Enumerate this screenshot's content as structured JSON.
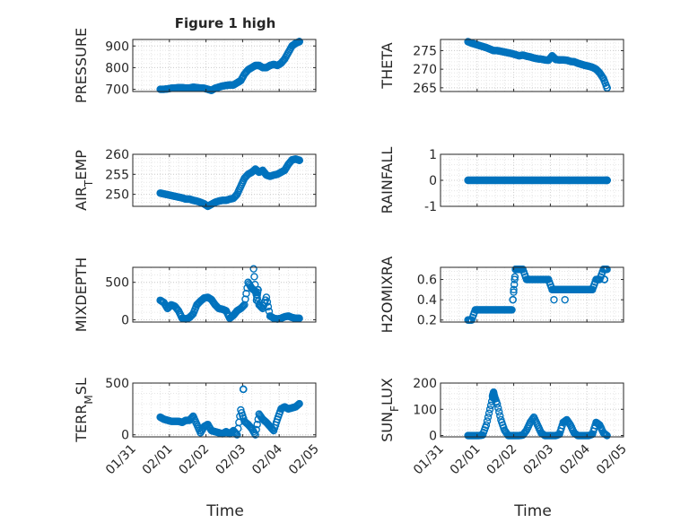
{
  "title": "Figure 1 high",
  "xlabel": "Time",
  "x_tick_labels": [
    "01/31",
    "02/01",
    "02/02",
    "02/03",
    "02/04",
    "02/05"
  ],
  "marker_color": "#0072BD",
  "chart_data": [
    {
      "type": "scatter",
      "name": "pressure",
      "ylabel": "PRESSURE",
      "ylim": [
        690,
        930
      ],
      "yticks": [
        700,
        800,
        900
      ],
      "grid": true,
      "x": [
        0.75,
        0.85,
        0.95,
        1.05,
        1.15,
        1.25,
        1.35,
        1.45,
        1.55,
        1.65,
        1.75,
        1.85,
        1.95,
        2.05,
        2.15,
        2.25,
        2.35,
        2.45,
        2.55,
        2.65,
        2.75,
        2.85,
        2.95,
        3.05,
        3.15,
        3.25,
        3.35,
        3.45,
        3.55,
        3.65,
        3.75,
        3.85,
        3.95,
        4.05,
        4.15,
        4.25,
        4.35,
        4.45,
        4.55
      ],
      "y": [
        700,
        700,
        702,
        705,
        706,
        708,
        708,
        706,
        706,
        710,
        708,
        706,
        705,
        700,
        695,
        705,
        710,
        715,
        718,
        720,
        720,
        730,
        740,
        770,
        790,
        800,
        810,
        810,
        800,
        800,
        810,
        815,
        810,
        820,
        840,
        870,
        900,
        912,
        920
      ]
    },
    {
      "type": "scatter",
      "name": "theta",
      "ylabel": "THETA",
      "ylim": [
        264,
        278
      ],
      "yticks": [
        265,
        270,
        275
      ],
      "grid": true,
      "x": [
        0.75,
        0.85,
        0.95,
        1.05,
        1.15,
        1.25,
        1.35,
        1.45,
        1.55,
        1.65,
        1.75,
        1.85,
        1.95,
        2.05,
        2.15,
        2.25,
        2.35,
        2.45,
        2.55,
        2.65,
        2.75,
        2.85,
        2.95,
        3.05,
        3.15,
        3.25,
        3.35,
        3.45,
        3.55,
        3.65,
        3.75,
        3.85,
        3.95,
        4.05,
        4.15,
        4.25,
        4.35,
        4.45,
        4.55
      ],
      "y": [
        277.4,
        277.0,
        276.7,
        276.4,
        276.1,
        275.8,
        275.4,
        275.0,
        275.0,
        274.8,
        274.6,
        274.4,
        274.2,
        273.9,
        273.6,
        273.8,
        273.5,
        273.3,
        273.0,
        272.8,
        272.7,
        272.5,
        272.4,
        273.6,
        272.6,
        272.5,
        272.5,
        272.4,
        272.1,
        272.0,
        271.6,
        271.3,
        271.0,
        270.8,
        270.5,
        270.0,
        269.0,
        267.5,
        265.0
      ]
    },
    {
      "type": "scatter",
      "name": "air_temp",
      "ylabel": "AIR_TEMP",
      "ylim": [
        247,
        260
      ],
      "yticks": [
        250,
        255,
        260
      ],
      "grid": true,
      "x": [
        0.75,
        0.85,
        0.95,
        1.05,
        1.15,
        1.25,
        1.35,
        1.45,
        1.55,
        1.65,
        1.75,
        1.85,
        1.95,
        2.05,
        2.15,
        2.25,
        2.35,
        2.45,
        2.55,
        2.65,
        2.75,
        2.85,
        2.95,
        3.05,
        3.15,
        3.25,
        3.35,
        3.45,
        3.55,
        3.65,
        3.75,
        3.85,
        3.95,
        4.05,
        4.15,
        4.25,
        4.35,
        4.45,
        4.55
      ],
      "y": [
        250.3,
        250.1,
        249.9,
        249.7,
        249.5,
        249.3,
        249.1,
        248.8,
        248.8,
        248.5,
        248.3,
        248.0,
        247.6,
        247.0,
        247.5,
        248.0,
        248.3,
        248.5,
        248.5,
        248.8,
        249.0,
        250.0,
        252.0,
        254.0,
        255.0,
        255.5,
        256.3,
        255.5,
        256.0,
        254.8,
        254.5,
        254.8,
        255.0,
        255.5,
        256.0,
        257.5,
        258.6,
        258.8,
        258.5
      ]
    },
    {
      "type": "scatter",
      "name": "rainfall",
      "ylabel": "RAINFALL",
      "ylim": [
        -1,
        1
      ],
      "yticks": [
        -1,
        0,
        1
      ],
      "grid": true,
      "x": [
        0.75,
        0.85,
        0.95,
        1.05,
        1.15,
        1.25,
        1.35,
        1.45,
        1.55,
        1.65,
        1.75,
        1.85,
        1.95,
        2.05,
        2.15,
        2.25,
        2.35,
        2.45,
        2.55,
        2.65,
        2.75,
        2.85,
        2.95,
        3.05,
        3.15,
        3.25,
        3.35,
        3.45,
        3.55,
        3.65,
        3.75,
        3.85,
        3.95,
        4.05,
        4.15,
        4.25,
        4.35,
        4.45,
        4.55
      ],
      "y": [
        0,
        0,
        0,
        0,
        0,
        0,
        0,
        0,
        0,
        0,
        0,
        0,
        0,
        0,
        0,
        0,
        0,
        0,
        0,
        0,
        0,
        0,
        0,
        0,
        0,
        0,
        0,
        0,
        0,
        0,
        0,
        0,
        0,
        0,
        0,
        0,
        0,
        0,
        0
      ]
    },
    {
      "type": "scatter",
      "name": "mixdepth",
      "ylabel": "MIXDEPTH",
      "ylim": [
        -30,
        700
      ],
      "yticks": [
        0,
        500
      ],
      "grid": true,
      "x": [
        0.75,
        0.85,
        0.95,
        1.05,
        1.15,
        1.25,
        1.35,
        1.45,
        1.55,
        1.65,
        1.75,
        1.85,
        1.95,
        2.05,
        2.15,
        2.25,
        2.35,
        2.45,
        2.55,
        2.65,
        2.75,
        2.85,
        2.95,
        3.05,
        3.15,
        3.25,
        3.35,
        3.45,
        3.55,
        3.65,
        3.75,
        3.85,
        3.95,
        4.05,
        4.15,
        4.25,
        4.35,
        4.45,
        4.55,
        3.3,
        3.38,
        3.42
      ],
      "y": [
        260,
        230,
        150,
        200,
        180,
        120,
        20,
        10,
        30,
        80,
        200,
        250,
        290,
        300,
        270,
        200,
        150,
        140,
        120,
        20,
        60,
        120,
        150,
        200,
        500,
        420,
        380,
        200,
        150,
        300,
        50,
        20,
        10,
        20,
        40,
        50,
        30,
        20,
        20,
        680,
        260,
        400
      ]
    },
    {
      "type": "scatter",
      "name": "h2omixra",
      "ylabel": "H2OMIXRA",
      "ylim": [
        0.18,
        0.72
      ],
      "yticks": [
        0.2,
        0.4,
        0.6
      ],
      "grid": true,
      "x": [
        0.75,
        0.85,
        0.95,
        1.05,
        1.15,
        1.25,
        1.35,
        1.45,
        1.55,
        1.65,
        1.75,
        1.85,
        1.95,
        2.05,
        2.15,
        2.25,
        2.35,
        2.45,
        2.55,
        2.65,
        2.75,
        2.85,
        2.95,
        3.05,
        3.15,
        3.25,
        3.35,
        3.45,
        3.55,
        3.65,
        3.75,
        3.85,
        3.95,
        4.05,
        4.15,
        4.25,
        4.35,
        4.45,
        4.55,
        1.98,
        2.05,
        3.1,
        3.4,
        4.48
      ],
      "y": [
        0.2,
        0.2,
        0.3,
        0.3,
        0.3,
        0.3,
        0.3,
        0.3,
        0.3,
        0.3,
        0.3,
        0.3,
        0.3,
        0.7,
        0.7,
        0.7,
        0.6,
        0.6,
        0.6,
        0.6,
        0.6,
        0.6,
        0.6,
        0.5,
        0.5,
        0.5,
        0.5,
        0.5,
        0.5,
        0.5,
        0.5,
        0.5,
        0.5,
        0.5,
        0.5,
        0.6,
        0.6,
        0.7,
        0.7,
        0.4,
        0.7,
        0.4,
        0.4,
        0.6
      ]
    },
    {
      "type": "scatter",
      "name": "terr_msl",
      "ylabel": "TERR_MSL",
      "ylim": [
        -20,
        500
      ],
      "yticks": [
        0,
        500
      ],
      "grid": true,
      "x": [
        0.75,
        0.85,
        0.95,
        1.05,
        1.15,
        1.25,
        1.35,
        1.45,
        1.55,
        1.65,
        1.75,
        1.85,
        1.95,
        2.05,
        2.15,
        2.25,
        2.35,
        2.45,
        2.55,
        2.65,
        2.75,
        2.85,
        2.95,
        3.05,
        3.15,
        3.25,
        3.35,
        3.45,
        3.55,
        3.65,
        3.75,
        3.85,
        3.95,
        4.05,
        4.15,
        4.25,
        4.35,
        4.45,
        4.55,
        3.02
      ],
      "y": [
        170,
        150,
        140,
        130,
        130,
        130,
        120,
        140,
        140,
        180,
        100,
        20,
        80,
        100,
        40,
        30,
        20,
        10,
        30,
        10,
        40,
        0,
        240,
        130,
        100,
        60,
        0,
        200,
        150,
        120,
        80,
        40,
        150,
        250,
        270,
        250,
        260,
        270,
        300,
        440
      ]
    },
    {
      "type": "scatter",
      "name": "sun_flux",
      "ylabel": "SUN_FLUX",
      "ylim": [
        -5,
        200
      ],
      "yticks": [
        0,
        100,
        200
      ],
      "grid": true,
      "x": [
        0.75,
        0.85,
        0.95,
        1.05,
        1.15,
        1.25,
        1.35,
        1.45,
        1.55,
        1.65,
        1.75,
        1.85,
        1.95,
        2.05,
        2.15,
        2.25,
        2.35,
        2.45,
        2.55,
        2.65,
        2.75,
        2.85,
        2.95,
        3.05,
        3.15,
        3.25,
        3.35,
        3.45,
        3.55,
        3.65,
        3.75,
        3.85,
        3.95,
        4.05,
        4.15,
        4.25,
        4.35,
        4.45,
        4.55,
        1.42,
        1.45,
        1.48
      ],
      "y": [
        0,
        0,
        0,
        0,
        2,
        40,
        100,
        160,
        120,
        60,
        20,
        0,
        0,
        0,
        0,
        2,
        20,
        50,
        70,
        40,
        10,
        0,
        0,
        0,
        0,
        5,
        50,
        60,
        40,
        10,
        0,
        0,
        0,
        0,
        5,
        50,
        40,
        10,
        0,
        150,
        165,
        140
      ]
    }
  ]
}
